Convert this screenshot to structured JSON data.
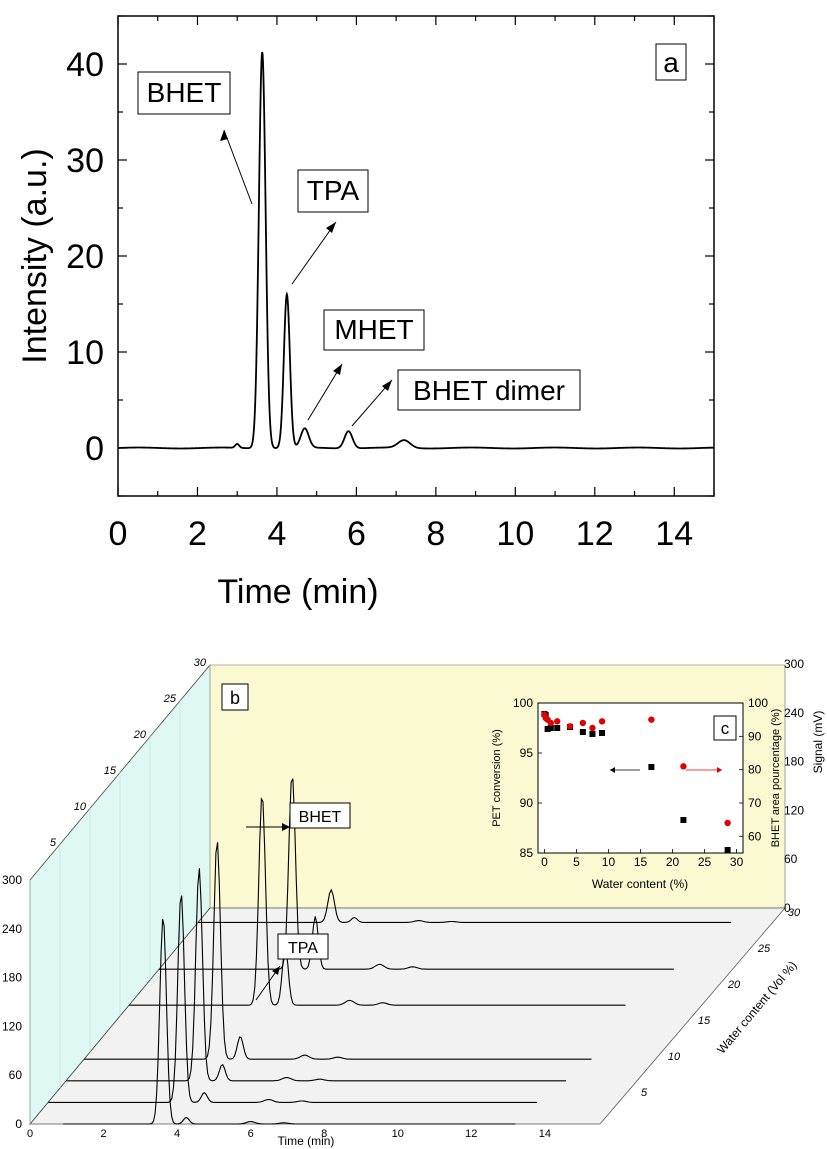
{
  "chart_data": [
    {
      "panel": "a",
      "type": "line",
      "xlabel": "Time (min)",
      "ylabel": "Intensity (a.u.)",
      "xlim": [
        0,
        15
      ],
      "ylim": [
        -5,
        45
      ],
      "xticks": [
        "0",
        "2",
        "4",
        "6",
        "8",
        "10",
        "12",
        "14"
      ],
      "yticks": [
        "0",
        "10",
        "20",
        "30",
        "40"
      ],
      "panel_label": "a",
      "peaks": [
        {
          "x": 3.0,
          "y": 0.4,
          "w": 0.05
        },
        {
          "x": 3.63,
          "y": 41.3,
          "w": 0.085
        },
        {
          "x": 4.25,
          "y": 16.0,
          "w": 0.075
        },
        {
          "x": 4.7,
          "y": 2.0,
          "w": 0.1
        },
        {
          "x": 5.8,
          "y": 1.8,
          "w": 0.1
        },
        {
          "x": 7.2,
          "y": 0.8,
          "w": 0.15
        }
      ],
      "annotations": [
        {
          "text": "BHET"
        },
        {
          "text": "TPA"
        },
        {
          "text": "MHET"
        },
        {
          "text": "BHET dimer"
        }
      ]
    },
    {
      "panel": "b",
      "type": "line",
      "xlabel": "Time (min)",
      "ylabel": "Signal (mV)",
      "zlabel": "Water content (Vol %)",
      "xticks": [
        "0",
        "2",
        "4",
        "6",
        "8",
        "10",
        "12",
        "14"
      ],
      "yticks": [
        "0",
        "60",
        "120",
        "180",
        "240",
        "300"
      ],
      "zticks": [
        "5",
        "10",
        "15",
        "20",
        "25",
        "30"
      ],
      "panel_label": "b",
      "annotations": [
        {
          "text": "BHET"
        },
        {
          "text": "TPA"
        }
      ],
      "note": "traces at increasing water content, major peaks near 3.6 min (BHET) and 4.2 min (TPA)"
    },
    {
      "panel": "c",
      "type": "scatter",
      "xlabel": "Water content (%)",
      "ylabel": "PET conversion (%)",
      "y2label": "BHET area pourcentage (%)",
      "xlim": [
        -1,
        31
      ],
      "ylim": [
        85,
        100
      ],
      "y2lim": [
        55,
        100
      ],
      "xticks": [
        "0",
        "5",
        "10",
        "15",
        "20",
        "25",
        "30"
      ],
      "yticks": [
        "85",
        "90",
        "95",
        "100"
      ],
      "y2ticks": [
        "60",
        "70",
        "80",
        "90",
        "100"
      ],
      "panel_label": "c",
      "series": [
        {
          "axis": "left",
          "color": "#000000",
          "x": [
            0,
            0.2,
            0.5,
            1.0,
            2.0,
            4.0,
            6.0,
            7.5,
            9.0,
            16.7,
            21.7,
            28.6
          ],
          "values": [
            98.9,
            98.8,
            97.4,
            97.5,
            97.5,
            97.6,
            97.1,
            96.9,
            97.0,
            93.6,
            88.3,
            85.3
          ]
        },
        {
          "axis": "right",
          "color": "#e00000",
          "x": [
            0,
            0.2,
            0.5,
            1.0,
            2.0,
            4.0,
            6.0,
            7.5,
            9.0,
            16.7,
            21.7,
            28.6
          ],
          "values": [
            96.5,
            95.5,
            95.0,
            94.0,
            94.5,
            93.0,
            94.0,
            92.5,
            94.5,
            95.0,
            81.0,
            64.0
          ]
        }
      ]
    }
  ]
}
